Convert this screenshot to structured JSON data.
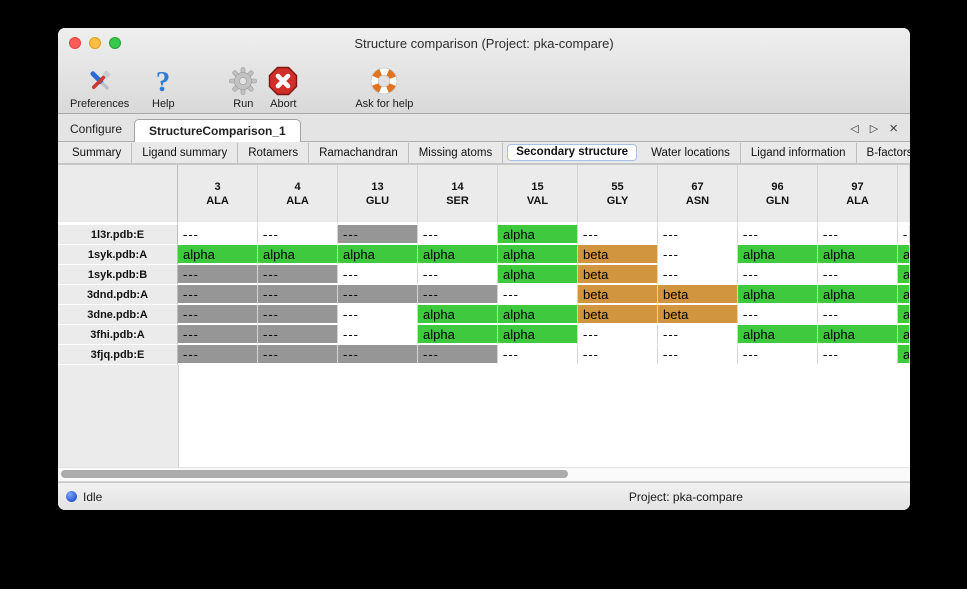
{
  "window": {
    "title": "Structure comparison (Project: pka-compare)"
  },
  "toolbar": {
    "items": [
      {
        "id": "preferences",
        "label": "Preferences",
        "icon": "tools-icon"
      },
      {
        "id": "help",
        "label": "Help",
        "icon": "question-icon"
      },
      {
        "id": "run",
        "label": "Run",
        "icon": "gear-icon"
      },
      {
        "id": "abort",
        "label": "Abort",
        "icon": "stop-icon"
      },
      {
        "id": "ask-for-help",
        "label": "Ask for help",
        "icon": "lifebuoy-icon"
      }
    ]
  },
  "tab_bar": {
    "tabs": [
      {
        "label": "Configure",
        "active": false
      },
      {
        "label": "StructureComparison_1",
        "active": true
      }
    ],
    "prev": "◁",
    "next": "▷",
    "close": "×"
  },
  "subtab_bar": {
    "tabs": [
      "Summary",
      "Ligand summary",
      "Rotamers",
      "Ramachandran",
      "Missing atoms",
      "Secondary structure",
      "Water locations",
      "Ligand information",
      "B-factors"
    ],
    "selected": "Secondary structure",
    "prev": "◁",
    "next": "▷"
  },
  "table": {
    "columns": [
      {
        "residue_number": "3",
        "residue_name": "ALA"
      },
      {
        "residue_number": "4",
        "residue_name": "ALA"
      },
      {
        "residue_number": "13",
        "residue_name": "GLU"
      },
      {
        "residue_number": "14",
        "residue_name": "SER"
      },
      {
        "residue_number": "15",
        "residue_name": "VAL"
      },
      {
        "residue_number": "55",
        "residue_name": "GLY"
      },
      {
        "residue_number": "67",
        "residue_name": "ASN"
      },
      {
        "residue_number": "96",
        "residue_name": "GLN"
      },
      {
        "residue_number": "97",
        "residue_name": "ALA"
      },
      {
        "residue_number": "",
        "residue_name": ""
      }
    ],
    "cell_text": {
      "alpha": "alpha",
      "beta": "beta",
      "coil": "---",
      "absent": "---"
    },
    "rows": [
      {
        "label": "1l3r.pdb:E",
        "cells": [
          "coil",
          "coil",
          "absent",
          "coil",
          "alpha",
          "coil",
          "coil",
          "coil",
          "coil",
          "coil"
        ]
      },
      {
        "label": "1syk.pdb:A",
        "cells": [
          "alpha",
          "alpha",
          "alpha",
          "alpha",
          "alpha",
          "beta",
          "coil",
          "alpha",
          "alpha",
          "alpha"
        ]
      },
      {
        "label": "1syk.pdb:B",
        "cells": [
          "absent",
          "absent",
          "coil",
          "coil",
          "alpha",
          "beta",
          "coil",
          "coil",
          "coil",
          "alpha"
        ]
      },
      {
        "label": "3dnd.pdb:A",
        "cells": [
          "absent",
          "absent",
          "absent",
          "absent",
          "coil",
          "beta",
          "beta",
          "alpha",
          "alpha",
          "alpha"
        ]
      },
      {
        "label": "3dne.pdb:A",
        "cells": [
          "absent",
          "absent",
          "coil",
          "alpha",
          "alpha",
          "beta",
          "beta",
          "coil",
          "coil",
          "alpha"
        ]
      },
      {
        "label": "3fhi.pdb:A",
        "cells": [
          "absent",
          "absent",
          "coil",
          "alpha",
          "alpha",
          "coil",
          "coil",
          "alpha",
          "alpha",
          "alpha"
        ]
      },
      {
        "label": "3fjq.pdb:E",
        "cells": [
          "absent",
          "absent",
          "absent",
          "absent",
          "coil",
          "coil",
          "coil",
          "coil",
          "coil",
          "alpha"
        ]
      }
    ]
  },
  "colors": {
    "alpha": "#3EC93E",
    "beta": "#D2953F",
    "absent": "#969696",
    "coil": "#FFFFFF",
    "selected_subtab_border": "#A4C2E4"
  },
  "status_bar": {
    "status": "Idle",
    "project": "Project: pka-compare"
  }
}
